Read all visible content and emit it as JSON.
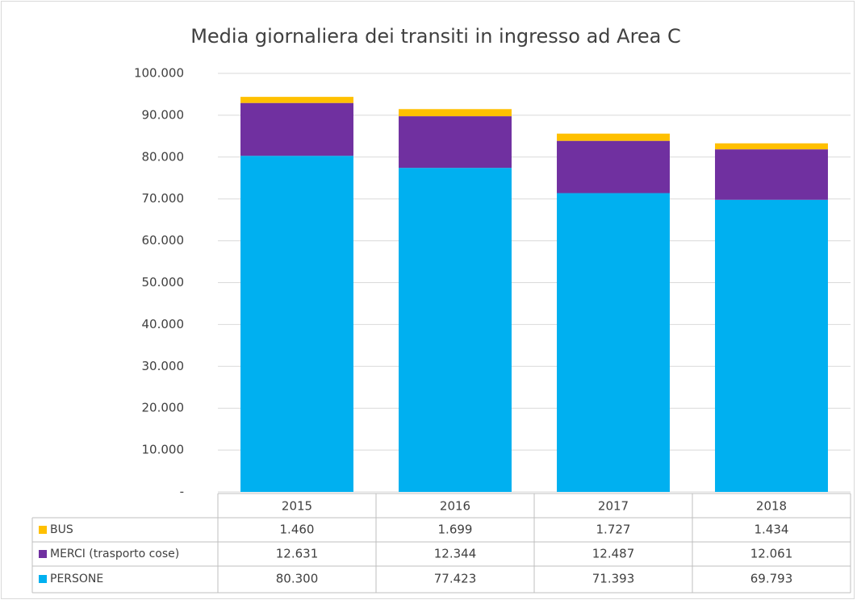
{
  "chart_data": {
    "type": "stacked_bar",
    "title": "Media giornaliera dei transiti in ingresso ad Area C",
    "categories": [
      "2015",
      "2016",
      "2017",
      "2018"
    ],
    "series": [
      {
        "name": "BUS",
        "color": "#ffc000",
        "values": [
          1460,
          1699,
          1727,
          1434
        ],
        "value_labels": [
          "1.460",
          "1.699",
          "1.727",
          "1.434"
        ]
      },
      {
        "name": "MERCI (trasporto cose)",
        "color": "#7030a0",
        "values": [
          12631,
          12344,
          12487,
          12061
        ],
        "value_labels": [
          "12.631",
          "12.344",
          "12.487",
          "12.061"
        ]
      },
      {
        "name": "PERSONE",
        "color": "#00b0f0",
        "values": [
          80300,
          77423,
          71393,
          69793
        ],
        "value_labels": [
          "80.300",
          "77.423",
          "71.393",
          "69.793"
        ]
      }
    ],
    "ylim": [
      0,
      100000
    ],
    "yticks": [
      {
        "value": 0,
        "label": "-"
      },
      {
        "value": 10000,
        "label": "10.000"
      },
      {
        "value": 20000,
        "label": "20.000"
      },
      {
        "value": 30000,
        "label": "30.000"
      },
      {
        "value": 40000,
        "label": "40.000"
      },
      {
        "value": 50000,
        "label": "50.000"
      },
      {
        "value": 60000,
        "label": "60.000"
      },
      {
        "value": 70000,
        "label": "70.000"
      },
      {
        "value": 80000,
        "label": "80.000"
      },
      {
        "value": 90000,
        "label": "90.000"
      },
      {
        "value": 100000,
        "label": "100.000"
      }
    ],
    "grid": true
  }
}
